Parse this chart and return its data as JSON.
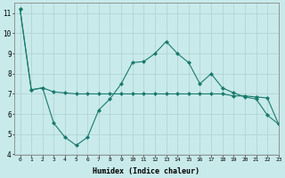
{
  "line1_x": [
    0,
    1,
    2,
    3,
    4,
    5,
    6,
    7,
    8,
    9,
    10,
    11,
    12,
    13,
    14,
    15,
    16,
    17,
    18,
    19,
    20,
    21,
    22,
    23
  ],
  "line1_y": [
    11.2,
    7.2,
    7.3,
    7.1,
    7.05,
    7.0,
    7.0,
    7.0,
    7.0,
    7.0,
    7.0,
    7.0,
    7.0,
    7.0,
    7.0,
    7.0,
    7.0,
    7.0,
    7.0,
    6.9,
    6.9,
    6.85,
    6.8,
    5.5
  ],
  "line2_x": [
    0,
    1,
    2,
    3,
    4,
    5,
    6,
    7,
    8,
    9,
    10,
    11,
    12,
    13,
    14,
    15,
    16,
    17,
    18,
    19,
    20,
    21,
    22,
    23
  ],
  "line2_y": [
    11.2,
    7.2,
    7.3,
    5.55,
    4.85,
    4.45,
    4.85,
    6.2,
    6.75,
    7.5,
    8.55,
    8.6,
    9.0,
    9.6,
    9.0,
    8.55,
    7.5,
    8.0,
    7.3,
    7.05,
    6.85,
    6.75,
    5.95,
    5.5
  ],
  "line_color": "#1a7a6e",
  "bg_color": "#c8eaea",
  "grid_color": "#b0d0d0",
  "xlabel": "Humidex (Indice chaleur)",
  "ylim": [
    4,
    11.5
  ],
  "xlim": [
    -0.5,
    23
  ],
  "yticks": [
    4,
    5,
    6,
    7,
    8,
    9,
    10,
    11
  ],
  "xticks": [
    0,
    1,
    2,
    3,
    4,
    5,
    6,
    7,
    8,
    9,
    10,
    11,
    12,
    13,
    14,
    15,
    16,
    17,
    18,
    19,
    20,
    21,
    22,
    23
  ]
}
